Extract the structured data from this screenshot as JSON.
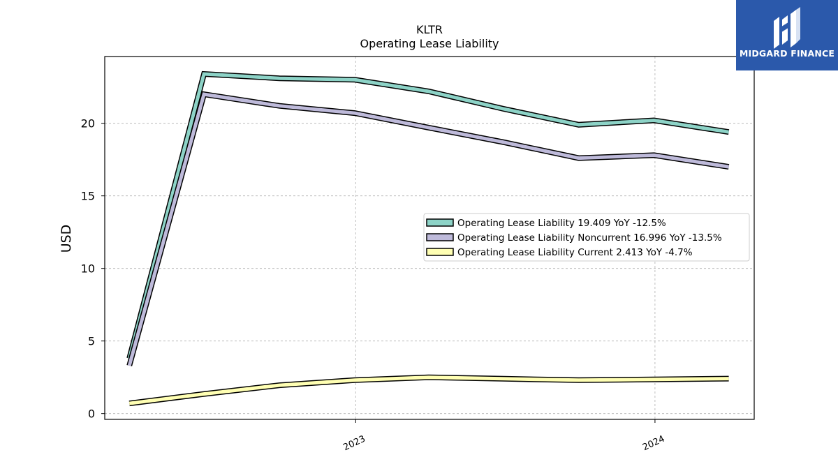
{
  "brand": {
    "name": "MIDGARD FINANCE",
    "background": "#2b59ab"
  },
  "chart_data": {
    "type": "line",
    "title": "KLTR",
    "subtitle": "Operating Lease Liability",
    "xlabel": "",
    "ylabel": "USD",
    "xlim": [
      "2022-03-01",
      "2024-05-01"
    ],
    "ylim": [
      -0.4,
      24.6
    ],
    "yticks": [
      0,
      5,
      10,
      15,
      20
    ],
    "xticks": [
      {
        "date": "2023-01-01",
        "label": "2023"
      },
      {
        "date": "2024-01-01",
        "label": "2024"
      }
    ],
    "grid": true,
    "legend_position": "right",
    "x": [
      "2022-03-31",
      "2022-06-30",
      "2022-09-30",
      "2022-12-31",
      "2023-03-31",
      "2023-06-30",
      "2023-09-30",
      "2023-12-31",
      "2024-03-31"
    ],
    "series": [
      {
        "name": "Operating Lease Liability",
        "legend": "Operating Lease Liability  19.409 YoY -12.5%",
        "color": "#8dd3c7",
        "values": [
          3.8,
          23.4,
          23.1,
          23.0,
          22.2,
          21.0,
          19.9,
          20.2,
          19.4
        ]
      },
      {
        "name": "Operating Lease Liability Noncurrent",
        "legend": "Operating Lease Liability Noncurrent  16.996 YoY -13.5%",
        "color": "#bebada",
        "values": [
          3.3,
          22.0,
          21.2,
          20.7,
          19.7,
          18.7,
          17.6,
          17.8,
          17.0
        ]
      },
      {
        "name": "Operating Lease Liability Current",
        "legend": "Operating Lease Liability Current  2.413 YoY -4.7%",
        "color": "#ffffb3",
        "values": [
          0.7,
          1.35,
          1.95,
          2.3,
          2.5,
          2.4,
          2.3,
          2.35,
          2.41
        ]
      }
    ]
  }
}
